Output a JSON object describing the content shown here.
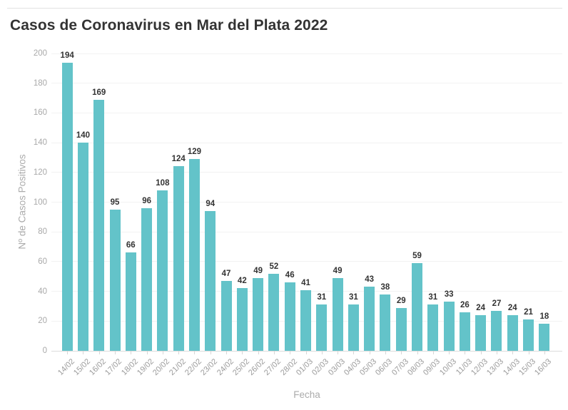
{
  "page": {
    "background_color": "#ffffff",
    "accent_color": "#63c3c9"
  },
  "header": {
    "title": "Casos de Coronavirus en Mar del Plata 2022"
  },
  "chart_data": {
    "type": "bar",
    "title": "Casos de Coronavirus en Mar del Plata 2022",
    "xlabel": "Fecha",
    "ylabel": "Nº de Casos Positivos",
    "ylim": [
      0,
      200
    ],
    "ytick_step": 20,
    "grid": true,
    "legend": "none",
    "bar_color": "#63c3c9",
    "value_label_color": "#333333",
    "axis_label_color": "#9b9b9b",
    "categories": [
      "14/02",
      "15/02",
      "16/02",
      "17/02",
      "18/02",
      "19/02",
      "20/02",
      "21/02",
      "22/02",
      "23/02",
      "24/02",
      "25/02",
      "26/02",
      "27/02",
      "28/02",
      "01/03",
      "02/03",
      "03/03",
      "04/03",
      "05/03",
      "06/03",
      "07/03",
      "08/03",
      "09/03",
      "10/03",
      "11/03",
      "12/03",
      "13/03",
      "14/03",
      "15/03",
      "16/03"
    ],
    "values": [
      194,
      140,
      169,
      95,
      66,
      96,
      108,
      124,
      129,
      94,
      47,
      42,
      49,
      52,
      46,
      41,
      31,
      49,
      31,
      43,
      38,
      29,
      59,
      31,
      33,
      26,
      24,
      27,
      24,
      21,
      18
    ]
  }
}
